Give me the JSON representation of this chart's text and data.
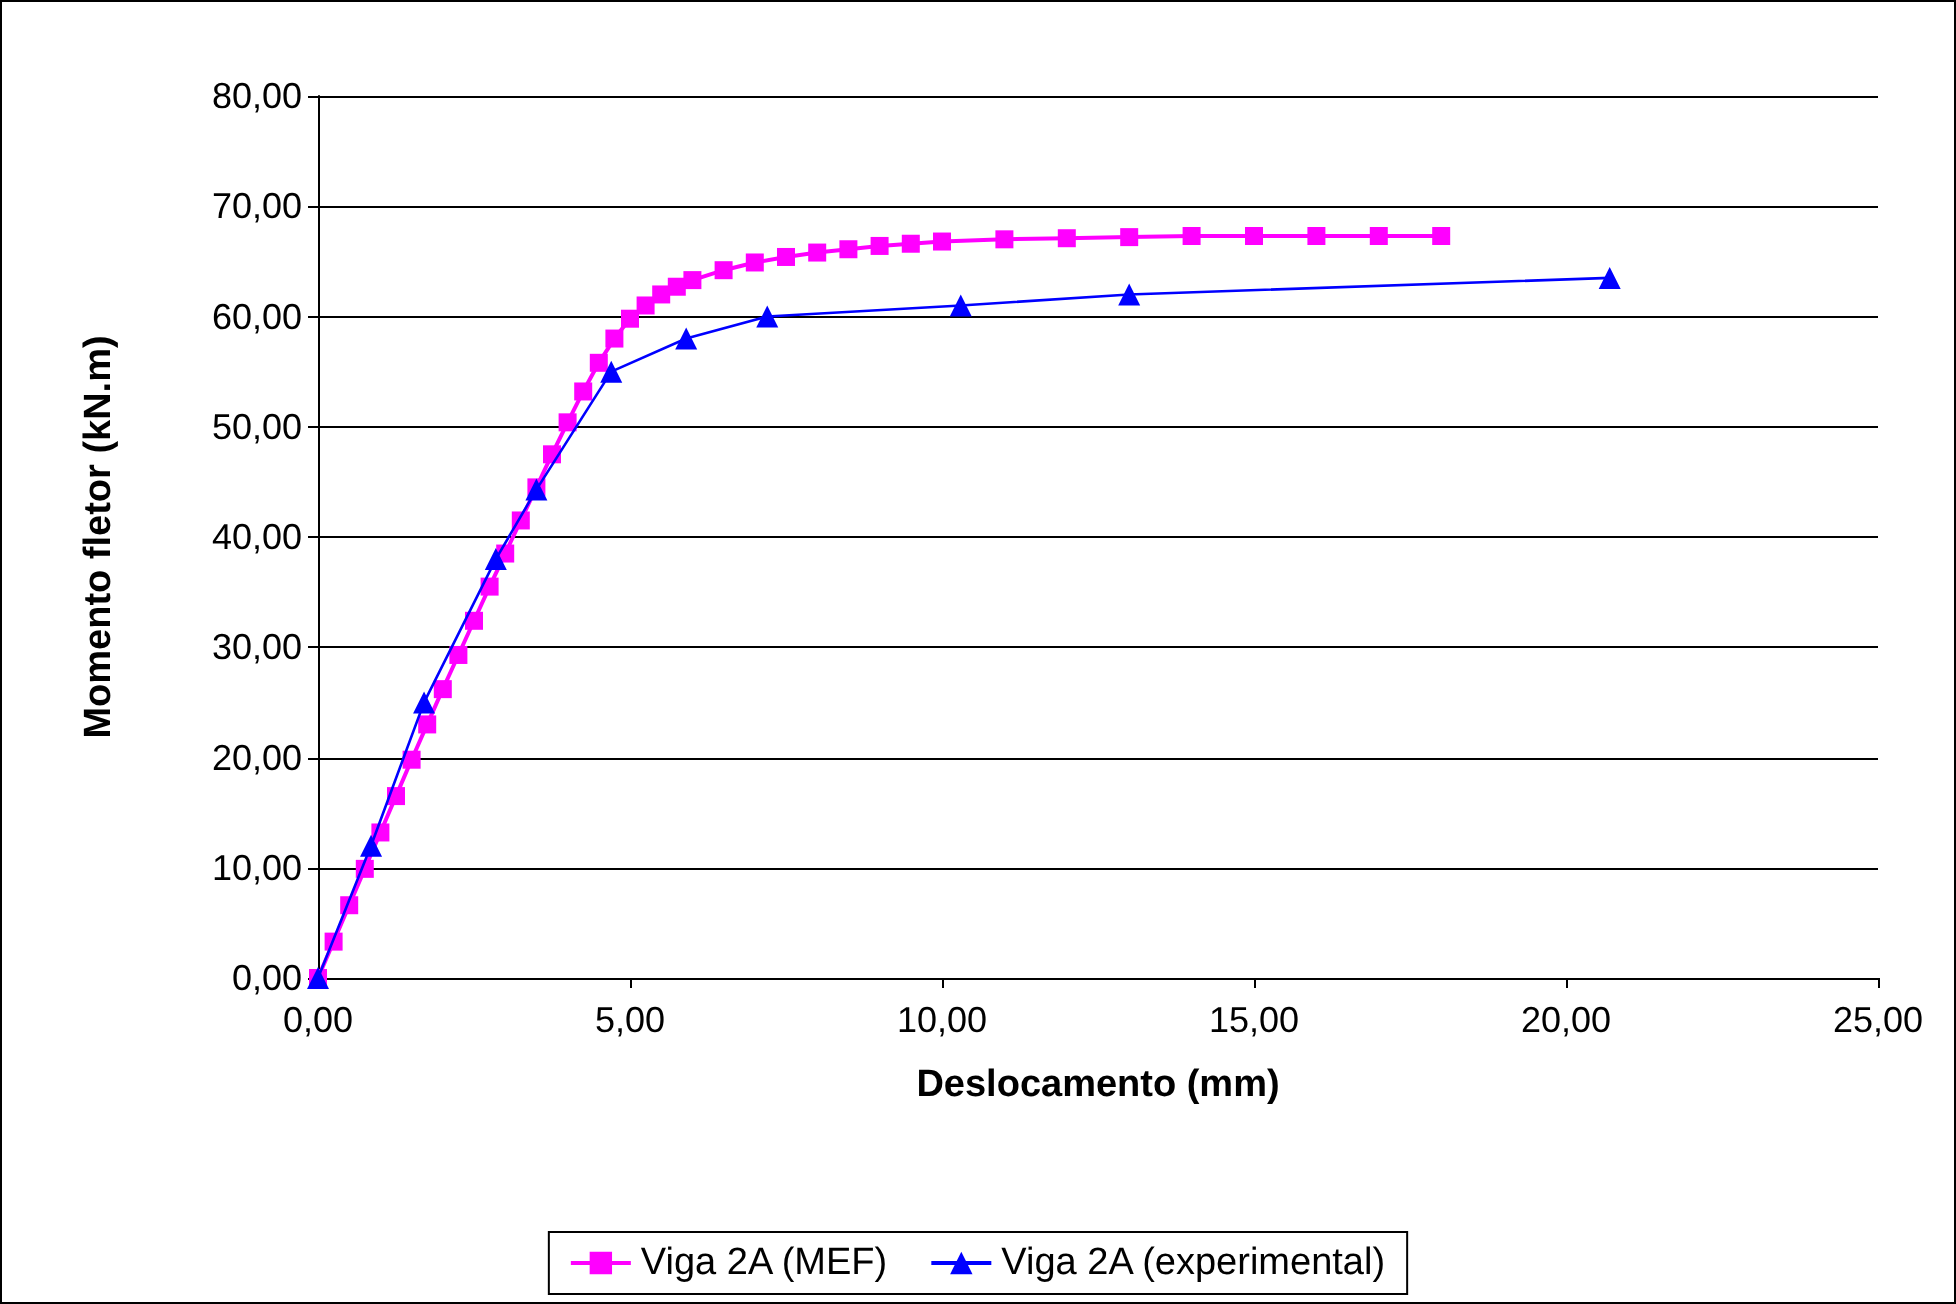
{
  "chart_data": {
    "type": "line",
    "xlabel": "Deslocamento (mm)",
    "ylabel": "Momento fletor (kN.m)",
    "xlim": [
      0,
      25
    ],
    "ylim": [
      0,
      80
    ],
    "xticks": [
      {
        "value": 0,
        "label": "0,00"
      },
      {
        "value": 5,
        "label": "5,00"
      },
      {
        "value": 10,
        "label": "10,00"
      },
      {
        "value": 15,
        "label": "15,00"
      },
      {
        "value": 20,
        "label": "20,00"
      },
      {
        "value": 25,
        "label": "25,00"
      }
    ],
    "yticks": [
      {
        "value": 0,
        "label": "0,00"
      },
      {
        "value": 10,
        "label": "10,00"
      },
      {
        "value": 20,
        "label": "20,00"
      },
      {
        "value": 30,
        "label": "30,00"
      },
      {
        "value": 40,
        "label": "40,00"
      },
      {
        "value": 50,
        "label": "50,00"
      },
      {
        "value": 60,
        "label": "60,00"
      },
      {
        "value": 70,
        "label": "70,00"
      },
      {
        "value": 80,
        "label": "80,00"
      }
    ],
    "grid": "y",
    "legend": "bottom",
    "line_style": "solid",
    "series": [
      {
        "name": "Viga 2A (MEF)",
        "color": "#ff00ff",
        "marker": "square",
        "x": [
          0,
          0.25,
          0.5,
          0.75,
          1,
          1.25,
          1.5,
          1.75,
          2,
          2.25,
          2.5,
          2.75,
          3,
          3.25,
          3.5,
          3.75,
          4,
          4.25,
          4.5,
          4.75,
          5,
          5.25,
          5.5,
          5.75,
          6,
          6.5,
          7,
          7.5,
          8,
          8.5,
          9,
          9.5,
          10,
          11,
          12,
          13,
          14,
          15,
          16,
          17,
          18
        ],
        "values": [
          0,
          3.3,
          6.6,
          9.9,
          13.2,
          16.5,
          19.8,
          23,
          26.2,
          29.3,
          32.4,
          35.5,
          38.5,
          41.5,
          44.5,
          47.5,
          50.4,
          53.2,
          55.8,
          58,
          59.8,
          61,
          62,
          62.7,
          63.3,
          64.2,
          64.9,
          65.4,
          65.8,
          66.1,
          66.4,
          66.6,
          66.8,
          67,
          67.1,
          67.2,
          67.3,
          67.3,
          67.3,
          67.3,
          67.3
        ]
      },
      {
        "name": "Viga 2A (experimental)",
        "color": "#0000ff",
        "marker": "triangle",
        "x": [
          0,
          0.85,
          1.7,
          2.85,
          3.5,
          4.7,
          5.9,
          7.2,
          10.3,
          13,
          20.7
        ],
        "values": [
          0,
          12,
          25,
          38,
          44.3,
          55,
          58,
          60,
          61,
          62,
          63.5
        ]
      }
    ]
  }
}
